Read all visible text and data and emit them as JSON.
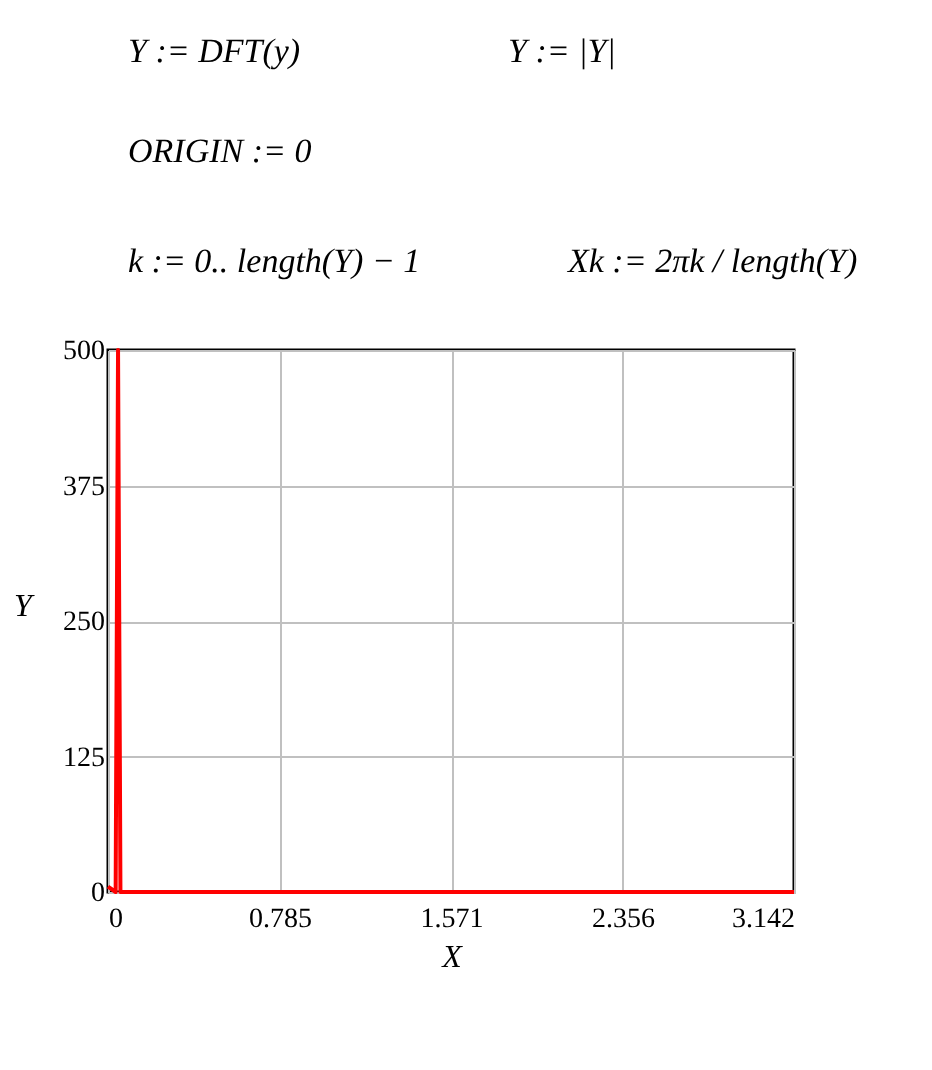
{
  "chart_data": {
    "type": "line",
    "xlabel": "X",
    "ylabel": "Y",
    "annotations": [
      "Y := DFT(y)",
      "Y := |Y|",
      "ORIGIN := 0",
      "k := 0.. length(Y) − 1",
      "Xk := 2πk / length(Y)"
    ],
    "x": [
      0,
      0.035,
      0.046,
      0.057,
      0.1,
      3.142
    ],
    "series": [
      {
        "color": "#ff0000",
        "values": [
          5,
          0,
          500,
          0,
          0,
          0
        ]
      }
    ],
    "xlim": [
      0,
      3.142
    ],
    "xticks": [
      0,
      0.785,
      1.571,
      2.356,
      3.142
    ],
    "ylim": [
      0,
      500
    ],
    "yticks": [
      0,
      125,
      250,
      375,
      500
    ],
    "grid": true,
    "line_style": "solid"
  }
}
